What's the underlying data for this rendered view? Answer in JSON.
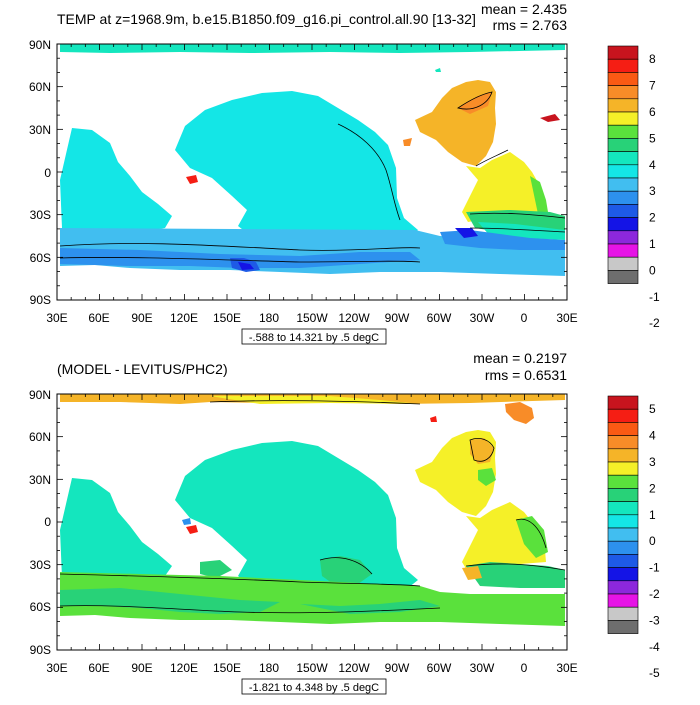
{
  "panels": [
    {
      "title": "TEMP at z=1968.9m, b.e15.B1850.f09_g16.pi_control.all.90 [13-32]",
      "mean": "mean = 2.435",
      "rms": "rms = 2.763",
      "range_label": "-.588 to 14.321 by .5 degC",
      "colorbar": {
        "labels": [
          "8",
          "7",
          "6",
          "5",
          "4",
          "3",
          "2",
          "1",
          "0",
          "-1",
          "-2"
        ],
        "colors": [
          "#c8141e",
          "#f51e14",
          "#fa5a14",
          "#f88c28",
          "#f5b428",
          "#f5f028",
          "#5ae13c",
          "#28d278",
          "#14e6be",
          "#14e6e6",
          "#41bef0",
          "#2d91ee",
          "#1e5ae6",
          "#1414e6",
          "#8c28dc",
          "#e614e6",
          "#c8c8c8",
          "#6e6e6e"
        ]
      }
    },
    {
      "title": "(MODEL - LEVITUS/PHC2)",
      "mean": "mean = 0.2197",
      "rms": "rms = 0.6531",
      "range_label": "-1.821 to 4.348 by .5 degC",
      "colorbar": {
        "labels": [
          "5",
          "4",
          "3",
          "2",
          "1",
          "0",
          "-1",
          "-2",
          "-3",
          "-4",
          "-5"
        ],
        "colors": [
          "#c8141e",
          "#f51e14",
          "#fa5a14",
          "#f88c28",
          "#f5b428",
          "#f5f028",
          "#5ae13c",
          "#28d278",
          "#14e6be",
          "#14e6e6",
          "#41bef0",
          "#2d91ee",
          "#1e5ae6",
          "#1414e6",
          "#8c28dc",
          "#e614e6",
          "#c8c8c8",
          "#6e6e6e"
        ]
      }
    }
  ],
  "lat_labels": [
    "90N",
    "60N",
    "30N",
    "0",
    "30S",
    "60S",
    "90S"
  ],
  "lon_labels": [
    "30E",
    "60E",
    "90E",
    "120E",
    "150E",
    "180",
    "150W",
    "120W",
    "90W",
    "60W",
    "30W",
    "0",
    "30E"
  ]
}
